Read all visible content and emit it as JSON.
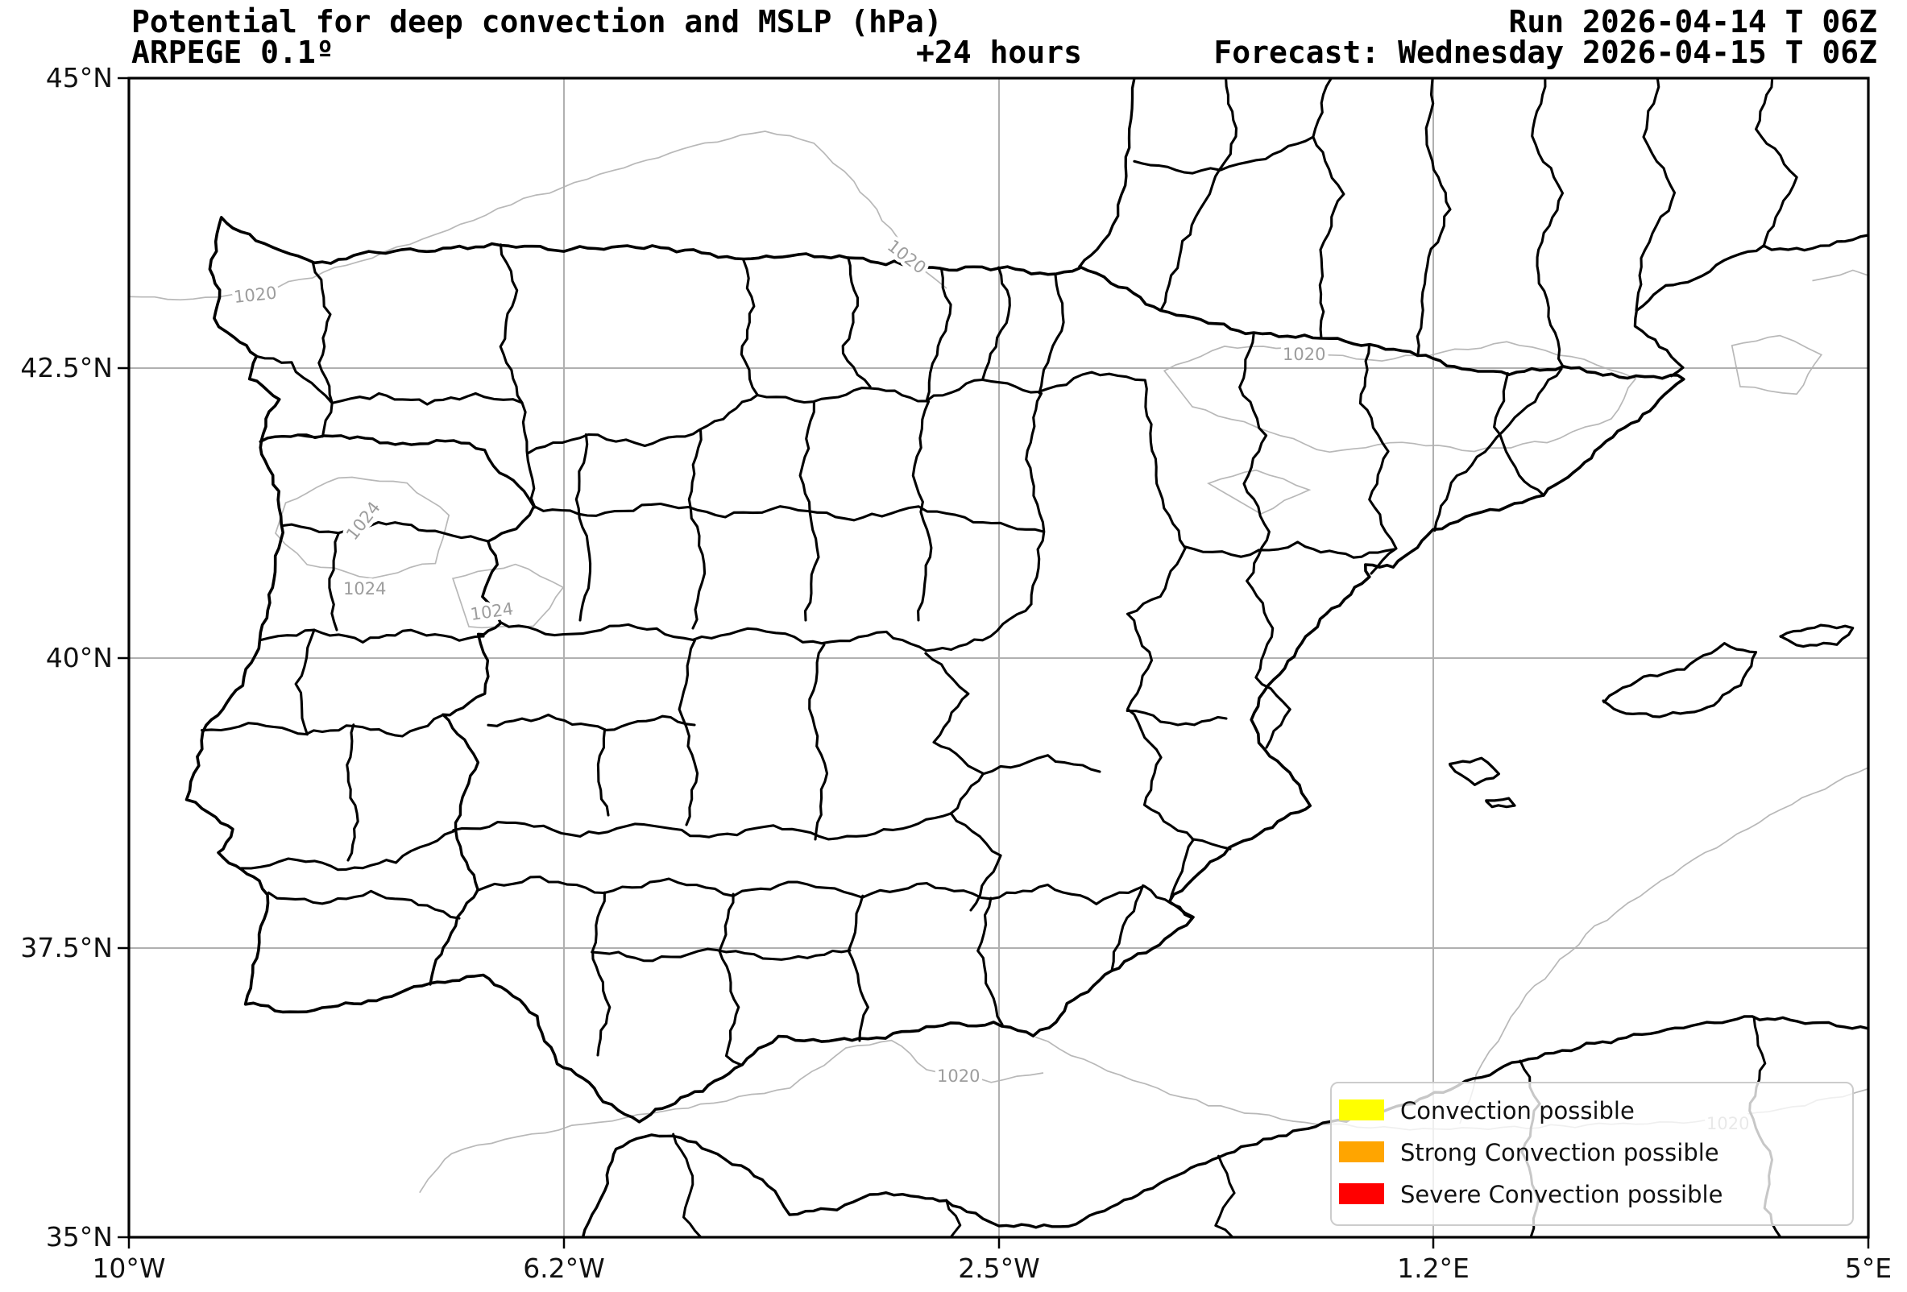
{
  "header": {
    "title": "Potential for deep convection and MSLP (hPa)",
    "model": "ARPEGE 0.1º",
    "lead": "+24 hours",
    "run": "Run 2026-04-14 T 06Z",
    "valid": "Forecast: Wednesday 2026-04-15 T 06Z"
  },
  "axes": {
    "lat": [
      "45°N",
      "42.5°N",
      "40°N",
      "37.5°N",
      "35°N"
    ],
    "lon": [
      "10°W",
      "6.2°W",
      "2.5°W",
      "1.2°E",
      "5°E"
    ]
  },
  "legend": {
    "items": [
      {
        "label": "Convection possible",
        "color": "#ffff00"
      },
      {
        "label": "Strong Convection possible",
        "color": "#ffa500"
      },
      {
        "label": "Severe Convection possible",
        "color": "#ff0000"
      }
    ]
  },
  "isobar_labels": [
    "1020",
    "1020",
    "1020",
    "1024",
    "1024",
    "1024",
    "1020",
    "1020"
  ],
  "colors": {
    "boundary": "#000000",
    "isobar": "#b8b8b8",
    "grid": "#b0b0b0",
    "isobar_label": "#9d9d9d",
    "legend_border": "#cccccc"
  }
}
